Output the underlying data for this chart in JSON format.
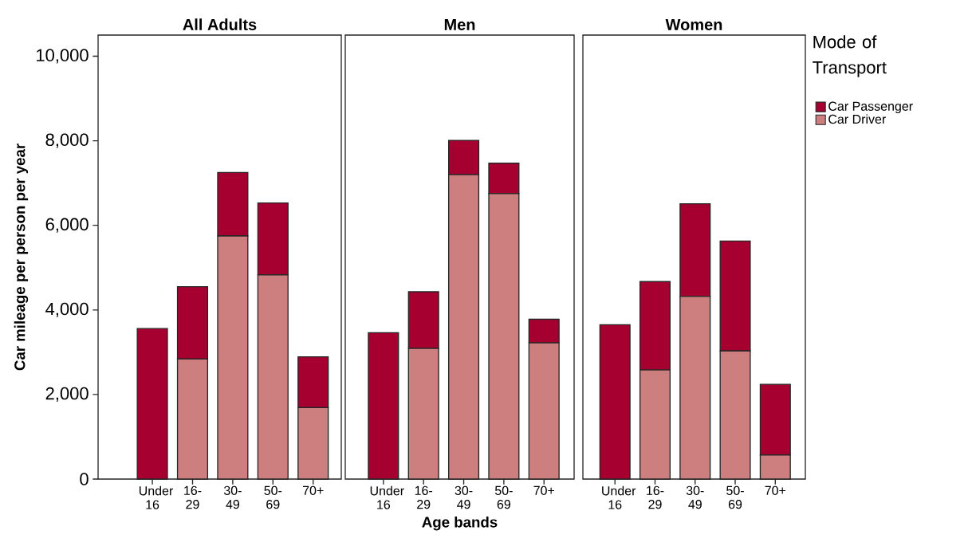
{
  "chart_data": [
    {
      "type": "bar",
      "title": "All Adults",
      "ylabel": "Car mileage per person per year",
      "stacked": true,
      "categories": [
        "Under 16",
        "16-29",
        "30-49",
        "50-69",
        "70+"
      ],
      "series": [
        {
          "color": "#cd7f7f",
          "values": [
            0,
            2840,
            5750,
            4830,
            1690
          ]
        },
        {
          "color": "#a50030",
          "values": [
            3560,
            1710,
            1500,
            1700,
            1200
          ]
        }
      ],
      "ylim": [
        0,
        10500
      ],
      "yticks": [
        0,
        {
          "value": 2000,
          "label": "2,000"
        },
        {
          "value": 4000,
          "label": "4,000"
        },
        {
          "value": 6000,
          "label": "6,000"
        },
        {
          "value": 8000,
          "label": "8,000"
        },
        {
          "value": 10000,
          "label": "10,000"
        }
      ],
      "grid": false,
      "legend": false
    },
    {
      "type": "bar",
      "title": "Men",
      "xlabel": "Age bands",
      "stacked": true,
      "categories": [
        "Under 16",
        "16-29",
        "30-49",
        "50-69",
        "70+"
      ],
      "series": [
        {
          "color": "#cd7f7f",
          "values": [
            0,
            3090,
            7200,
            6750,
            3220
          ]
        },
        {
          "color": "#a50030",
          "values": [
            3460,
            1340,
            810,
            720,
            560
          ]
        }
      ],
      "ylim": [
        0,
        10500
      ],
      "tick_labels": "x",
      "grid": false,
      "legend": false
    },
    {
      "type": "bar",
      "title": "Women",
      "legend_title": "Mode of Transport",
      "stacked": true,
      "categories": [
        "Under 16",
        "16-29",
        "30-49",
        "50-69",
        "70+"
      ],
      "series": [
        {
          "name": "Car Driver",
          "color": "#cd7f7f",
          "values": [
            0,
            2580,
            4320,
            3030,
            570
          ]
        },
        {
          "name": "Car Passenger",
          "color": "#a50030",
          "values": [
            3650,
            2090,
            2190,
            2600,
            1670
          ]
        }
      ],
      "ylim": [
        0,
        10500
      ],
      "tick_labels": "x",
      "grid": false,
      "legend": "right"
    }
  ]
}
